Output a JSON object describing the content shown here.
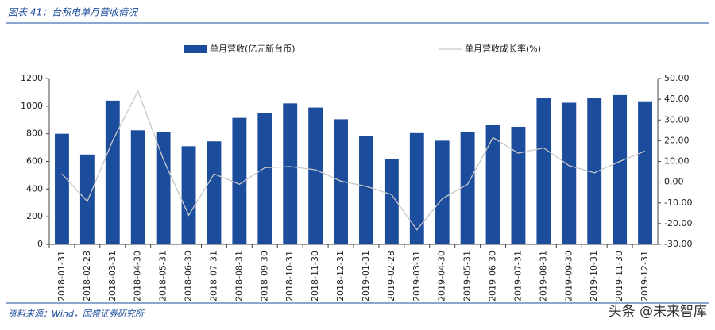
{
  "header": {
    "title": "图表 41：台积电单月营收情况"
  },
  "chart_data": {
    "type": "bar",
    "categories": [
      "2018-01-31",
      "2018-02-28",
      "2018-03-31",
      "2018-04-30",
      "2018-05-31",
      "2018-06-30",
      "2018-07-31",
      "2018-08-31",
      "2018-09-30",
      "2018-10-31",
      "2018-11-30",
      "2018-12-31",
      "2019-01-31",
      "2019-02-28",
      "2019-03-31",
      "2019-04-30",
      "2019-05-31",
      "2019-06-30",
      "2019-07-31",
      "2019-08-31",
      "2019-09-30",
      "2019-10-31",
      "2019-11-30",
      "2019-12-31"
    ],
    "series": [
      {
        "name": "单月营收(亿元新台币)",
        "type": "bar",
        "color": "#1c4c9c",
        "values": [
          800,
          650,
          1040,
          825,
          815,
          710,
          745,
          915,
          950,
          1020,
          990,
          905,
          785,
          615,
          805,
          750,
          810,
          865,
          850,
          1060,
          1025,
          1060,
          1080,
          1035
        ]
      },
      {
        "name": "单月营收成长率(%)",
        "type": "line",
        "axis": "y2",
        "color": "#c8c8c8",
        "values": [
          4,
          -9.3,
          20,
          44,
          11,
          -16,
          4,
          -1,
          7,
          7.5,
          6,
          0.5,
          -2,
          -6,
          -23,
          -8,
          -1,
          21.5,
          14,
          16.5,
          8,
          4.5,
          10,
          15
        ]
      }
    ],
    "ylim": [
      0,
      1200
    ],
    "yticks": [
      0,
      200,
      400,
      600,
      800,
      1000,
      1200
    ],
    "y2lim": [
      -30,
      50
    ],
    "y2ticks": [
      {
        "value": -30,
        "label": "-30.00"
      },
      {
        "value": -20,
        "label": "-20.00"
      },
      {
        "value": -10,
        "label": "-10.00"
      },
      {
        "value": 0,
        "label": "0.00"
      },
      {
        "value": 10,
        "label": "10.00"
      },
      {
        "value": 20,
        "label": "20.00"
      },
      {
        "value": 30,
        "label": "30.00"
      },
      {
        "value": 40,
        "label": "40.00"
      },
      {
        "value": 50,
        "label": "50.00"
      }
    ]
  },
  "footer": {
    "source": "资料来源：Wind，国盛证券研究所",
    "watermark": "头条 @未来智库"
  }
}
